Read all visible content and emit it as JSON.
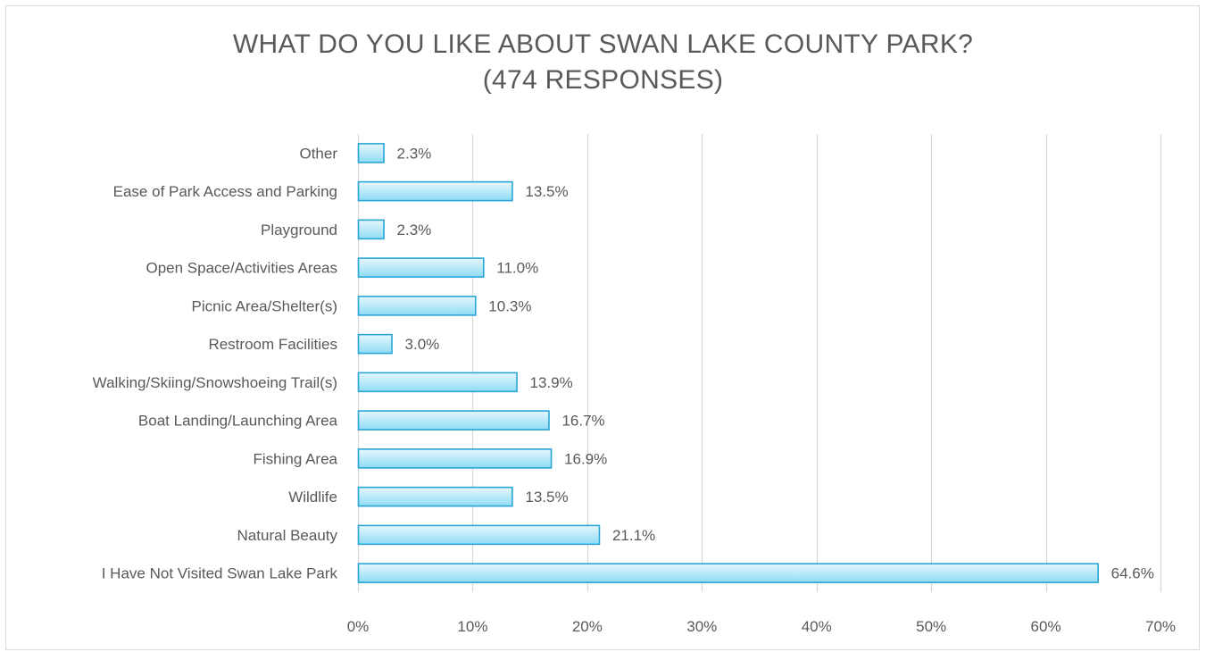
{
  "chart_data": {
    "type": "bar",
    "orientation": "horizontal",
    "title": "WHAT DO YOU LIKE ABOUT SWAN LAKE COUNTY PARK?",
    "subtitle": "(474 RESPONSES)",
    "categories": [
      "Other",
      "Ease of Park Access and Parking",
      "Playground",
      "Open Space/Activities Areas",
      "Picnic Area/Shelter(s)",
      "Restroom Facilities",
      "Walking/Skiing/Snowshoeing Trail(s)",
      "Boat Landing/Launching Area",
      "Fishing Area",
      "Wildlife",
      "Natural Beauty",
      "I Have Not Visited Swan Lake Park"
    ],
    "values": [
      2.3,
      13.5,
      2.3,
      11.0,
      10.3,
      3.0,
      13.9,
      16.7,
      16.9,
      13.5,
      21.1,
      64.6
    ],
    "data_labels": [
      "2.3%",
      "13.5%",
      "2.3%",
      "11.0%",
      "10.3%",
      "3.0%",
      "13.9%",
      "16.7%",
      "16.9%",
      "13.5%",
      "21.1%",
      "64.6%"
    ],
    "xlim": [
      0,
      70
    ],
    "xticks": [
      0,
      10,
      20,
      30,
      40,
      50,
      60,
      70
    ],
    "xtick_labels": [
      "0%",
      "10%",
      "20%",
      "30%",
      "40%",
      "50%",
      "60%",
      "70%"
    ],
    "grid": true,
    "legend": "none",
    "colors": {
      "bar_fill_top": "#e6f7fd",
      "bar_fill_bottom": "#8fdcf5",
      "bar_stroke": "#2aa6d6",
      "gridline": "#d9d9d9",
      "text": "#595959"
    }
  }
}
